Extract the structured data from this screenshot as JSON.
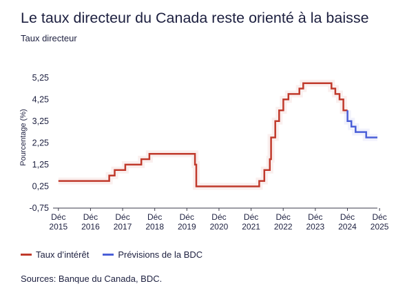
{
  "header": {
    "title": "Le taux directeur du Canada reste orienté à la baisse",
    "subtitle": "Taux directeur"
  },
  "legend": {
    "items": [
      {
        "label": "Taux d’intérêt",
        "color": "#c0392b"
      },
      {
        "label": "Prévisions de la BDC",
        "color": "#4a5fd8"
      }
    ]
  },
  "source": "Sources: Banque du Canada, BDC.",
  "chart_data": {
    "type": "line",
    "title": "Le taux directeur du Canada reste orienté à la baisse",
    "ylabel": "Pourcentage (%)",
    "xlabel": "",
    "ylim": [
      -0.75,
      5.75
    ],
    "xlim": [
      2015.75,
      2025.85
    ],
    "y_ticks": [
      5.25,
      4.25,
      3.25,
      2.25,
      1.25,
      0.25,
      -0.75
    ],
    "y_tick_labels": [
      "5,25",
      "4,25",
      "3,25",
      "2,25",
      "1,25",
      "0,25",
      "-0,75"
    ],
    "x_ticks": [
      {
        "x": 2015.917,
        "line1": "Déc",
        "line2": "2015"
      },
      {
        "x": 2016.917,
        "line1": "Déc",
        "line2": "2016"
      },
      {
        "x": 2017.917,
        "line1": "Déc",
        "line2": "2017"
      },
      {
        "x": 2018.917,
        "line1": "Déc",
        "line2": "2018"
      },
      {
        "x": 2019.917,
        "line1": "Déc",
        "line2": "2019"
      },
      {
        "x": 2020.917,
        "line1": "Déc",
        "line2": "2020"
      },
      {
        "x": 2021.917,
        "line1": "Déc",
        "line2": "2021"
      },
      {
        "x": 2022.917,
        "line1": "Déc",
        "line2": "2022"
      },
      {
        "x": 2023.917,
        "line1": "Déc",
        "line2": "2023"
      },
      {
        "x": 2024.917,
        "line1": "Déc",
        "line2": "2024"
      },
      {
        "x": 2025.917,
        "line1": "Déc",
        "line2": "2025"
      }
    ],
    "grid": false,
    "legend_position": "bottom-left",
    "series": [
      {
        "name": "Taux d’intérêt",
        "color": "#c0392b",
        "points": [
          [
            2015.917,
            0.5
          ],
          [
            2017.5,
            0.5
          ],
          [
            2017.5,
            0.75
          ],
          [
            2017.67,
            0.75
          ],
          [
            2017.67,
            1.0
          ],
          [
            2018.0,
            1.0
          ],
          [
            2018.0,
            1.25
          ],
          [
            2018.5,
            1.25
          ],
          [
            2018.5,
            1.5
          ],
          [
            2018.75,
            1.5
          ],
          [
            2018.75,
            1.75
          ],
          [
            2020.17,
            1.75
          ],
          [
            2020.17,
            1.25
          ],
          [
            2020.21,
            1.25
          ],
          [
            2020.21,
            0.25
          ],
          [
            2022.17,
            0.25
          ],
          [
            2022.17,
            0.5
          ],
          [
            2022.33,
            0.5
          ],
          [
            2022.33,
            1.0
          ],
          [
            2022.5,
            1.0
          ],
          [
            2022.5,
            1.5
          ],
          [
            2022.54,
            1.5
          ],
          [
            2022.54,
            2.5
          ],
          [
            2022.67,
            2.5
          ],
          [
            2022.67,
            3.25
          ],
          [
            2022.79,
            3.25
          ],
          [
            2022.79,
            3.75
          ],
          [
            2022.92,
            3.75
          ],
          [
            2022.92,
            4.25
          ],
          [
            2023.08,
            4.25
          ],
          [
            2023.08,
            4.5
          ],
          [
            2023.42,
            4.5
          ],
          [
            2023.42,
            4.75
          ],
          [
            2023.54,
            4.75
          ],
          [
            2023.54,
            5.0
          ],
          [
            2024.42,
            5.0
          ],
          [
            2024.42,
            4.75
          ],
          [
            2024.54,
            4.75
          ],
          [
            2024.54,
            4.5
          ],
          [
            2024.67,
            4.5
          ],
          [
            2024.67,
            4.25
          ],
          [
            2024.79,
            4.25
          ],
          [
            2024.79,
            3.75
          ],
          [
            2024.92,
            3.75
          ]
        ]
      },
      {
        "name": "Prévisions de la BDC",
        "color": "#4a5fd8",
        "points": [
          [
            2024.92,
            3.75
          ],
          [
            2024.92,
            3.25
          ],
          [
            2025.04,
            3.25
          ],
          [
            2025.04,
            3.0
          ],
          [
            2025.17,
            3.0
          ],
          [
            2025.17,
            2.75
          ],
          [
            2025.29,
            2.75
          ],
          [
            2025.29,
            2.75
          ],
          [
            2025.5,
            2.75
          ],
          [
            2025.5,
            2.5
          ],
          [
            2025.85,
            2.5
          ]
        ]
      }
    ]
  }
}
